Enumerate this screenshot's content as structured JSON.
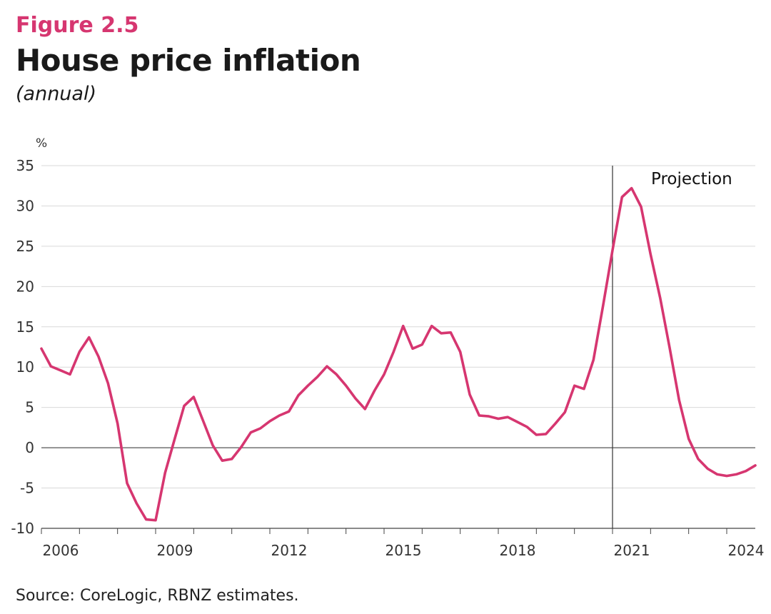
{
  "figure_label": "Figure 2.5",
  "title": "House price inflation",
  "subtitle": "(annual)",
  "source": "Source: CoreLogic, RBNZ estimates.",
  "line_color": "#d63670",
  "chart_data": {
    "type": "line",
    "ylabel": "%",
    "ylim": [
      -10,
      35
    ],
    "yticks": [
      -10,
      -5,
      0,
      5,
      10,
      15,
      20,
      25,
      30,
      35
    ],
    "xlim": [
      2006.0,
      2024.75
    ],
    "xtick_labels": [
      "2006",
      "2009",
      "2012",
      "2015",
      "2018",
      "2021",
      "2024"
    ],
    "xtick_values": [
      2006,
      2009,
      2012,
      2015,
      2018,
      2021,
      2024
    ],
    "projection_start": 2021.0,
    "annotation": "Projection",
    "grid": true,
    "series": [
      {
        "x": [
          2006.0,
          2006.25,
          2006.5,
          2006.75,
          2007.0,
          2007.25,
          2007.5,
          2007.75,
          2008.0,
          2008.25,
          2008.5,
          2008.75,
          2009.0,
          2009.25,
          2009.5,
          2009.75,
          2010.0,
          2010.25,
          2010.5,
          2010.75,
          2011.0,
          2011.25,
          2011.5,
          2011.75,
          2012.0,
          2012.25,
          2012.5,
          2012.75,
          2013.0,
          2013.25,
          2013.5,
          2013.75,
          2014.0,
          2014.25,
          2014.5,
          2014.75,
          2015.0,
          2015.25,
          2015.5,
          2015.75,
          2016.0,
          2016.25,
          2016.5,
          2016.75,
          2017.0,
          2017.25,
          2017.5,
          2017.75,
          2018.0,
          2018.25,
          2018.5,
          2018.75,
          2019.0,
          2019.25,
          2019.5,
          2019.75,
          2020.0,
          2020.25,
          2020.5,
          2020.75,
          2021.0,
          2021.25,
          2021.5,
          2021.75,
          2022.0,
          2022.25,
          2022.5,
          2022.75,
          2023.0,
          2023.25,
          2023.5,
          2023.75,
          2024.0,
          2024.25,
          2024.5,
          2024.75
        ],
        "values": [
          12.3,
          10.1,
          9.6,
          9.1,
          11.9,
          13.7,
          11.3,
          8.0,
          3.0,
          -4.4,
          -6.9,
          -8.9,
          -9.0,
          -3.1,
          1.1,
          5.2,
          6.3,
          3.3,
          0.3,
          -1.6,
          -1.4,
          0.1,
          1.9,
          2.4,
          3.3,
          4.0,
          4.5,
          6.5,
          7.7,
          8.8,
          10.1,
          9.1,
          7.7,
          6.1,
          4.8,
          7.1,
          9.1,
          11.9,
          15.1,
          12.3,
          12.8,
          15.1,
          14.2,
          14.3,
          11.9,
          6.6,
          4.0,
          3.9,
          3.6,
          3.8,
          3.2,
          2.6,
          1.6,
          1.7,
          3.0,
          4.4,
          7.7,
          7.3,
          10.9,
          17.6,
          24.5,
          31.1,
          32.2,
          29.9,
          24.0,
          18.6,
          12.4,
          5.9,
          1.1,
          -1.4,
          -2.6,
          -3.3,
          -3.5,
          -3.3,
          -2.9,
          -2.2
        ]
      }
    ]
  }
}
